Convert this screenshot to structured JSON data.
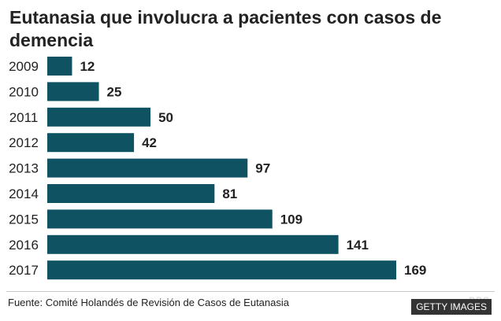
{
  "chart_data": {
    "type": "bar",
    "orientation": "horizontal",
    "title": "Eutanasia que involucra a pacientes con casos de demencia",
    "categories": [
      "2009",
      "2010",
      "2011",
      "2012",
      "2013",
      "2014",
      "2015",
      "2016",
      "2017"
    ],
    "values": [
      12,
      25,
      50,
      42,
      97,
      81,
      109,
      141,
      169
    ],
    "xlim": [
      0,
      169
    ],
    "grid": false,
    "legend": "none",
    "data_labels": true,
    "bar_color": "#0f5363"
  },
  "footer": {
    "source": "Fuente: Comité Holandés de Revisión de Casos de Eutanasia",
    "credit": "GETTY IMAGES",
    "watermark": "BBC"
  }
}
